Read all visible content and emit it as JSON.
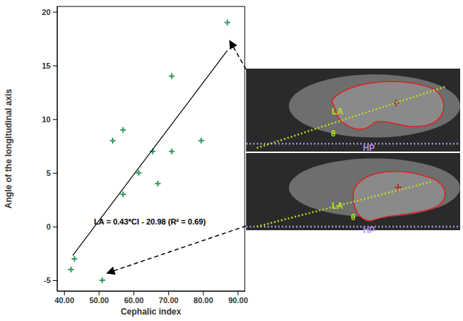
{
  "chart_data": {
    "type": "scatter",
    "x_label": "Cephalic index",
    "y_label": "Angle of the longitudinal axis",
    "xlim": [
      38,
      92
    ],
    "ylim": [
      -6,
      20.5
    ],
    "xticks": [
      {
        "value": 40,
        "label": "40.00"
      },
      {
        "value": 50,
        "label": "50.00"
      },
      {
        "value": 60,
        "label": "60.00"
      },
      {
        "value": 70,
        "label": "70.00"
      },
      {
        "value": 80,
        "label": "80.00"
      },
      {
        "value": 90,
        "label": "90.00"
      }
    ],
    "yticks": [
      -5,
      0,
      5,
      10,
      15,
      20
    ],
    "series": [
      {
        "type": "scatter",
        "color": "#2e9a5a",
        "marker": "plus",
        "x": [
          42,
          43,
          51,
          54,
          57,
          57,
          61.5,
          65.5,
          67,
          71,
          71,
          79.5,
          87
        ],
        "values": [
          -4,
          -3,
          -5,
          8,
          9,
          3,
          5,
          7,
          4,
          14,
          7,
          8,
          19
        ]
      },
      {
        "type": "line",
        "color": "#000000",
        "line_style": "solid",
        "x": [
          42.5,
          87
        ],
        "values": [
          -2.7,
          16.4
        ]
      }
    ],
    "annotations": [
      "LA = 0.43*CI - 20.98 (R² = 0.69)"
    ],
    "insets": [
      {
        "labels": [
          "LA",
          "θ",
          "HP"
        ]
      },
      {
        "labels": [
          "LA",
          "θ",
          "HP"
        ]
      }
    ]
  }
}
